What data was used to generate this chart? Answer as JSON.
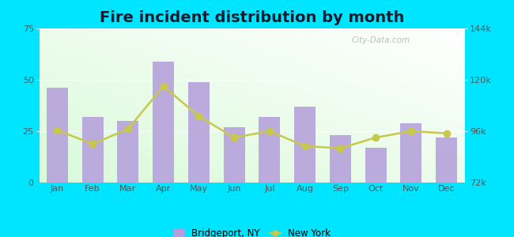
{
  "title": "Fire incident distribution by month",
  "months": [
    "Jan",
    "Feb",
    "Mar",
    "Apr",
    "May",
    "Jun",
    "Jul",
    "Aug",
    "Sep",
    "Oct",
    "Nov",
    "Dec"
  ],
  "bridgeport_values": [
    46,
    32,
    30,
    59,
    49,
    27,
    32,
    37,
    23,
    17,
    29,
    22
  ],
  "newyork_values": [
    96500,
    90000,
    97000,
    117000,
    103000,
    93000,
    96000,
    89000,
    88000,
    93000,
    96000,
    95000
  ],
  "bar_color": "#b39ddb",
  "line_color": "#c8c84a",
  "background_outer": "#00e5ff",
  "left_ylim": [
    0,
    75
  ],
  "left_yticks": [
    0,
    25,
    50,
    75
  ],
  "right_ylim": [
    72000,
    144000
  ],
  "right_yticks": [
    72000,
    96000,
    120000,
    144000
  ],
  "right_yticklabels": [
    "72k",
    "96k",
    "120k",
    "144k"
  ],
  "watermark": "City-Data.com",
  "legend_bridgeport": "Bridgeport, NY",
  "legend_newyork": "New York",
  "title_fontsize": 14,
  "tick_fontsize": 8,
  "tick_color": "#555555"
}
